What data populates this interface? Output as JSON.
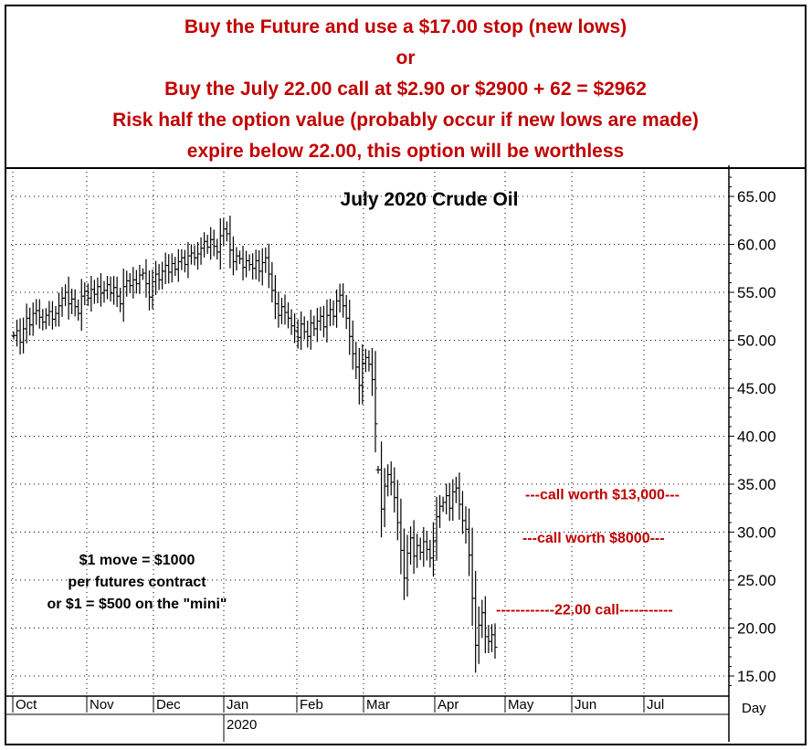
{
  "header": {
    "lines": [
      "Buy the Future and use a $17.00 stop (new lows)",
      "or",
      "Buy the July 22.00 call at $2.90 or $2900 + 62 = $2962",
      "Risk half the option value (probably occur if new lows are made)",
      "expire below 22.00, this option will be worthless"
    ]
  },
  "colors": {
    "annotation": "#c00000",
    "bars": "#000000",
    "grid": "#000000",
    "background": "#ffffff"
  },
  "chart_data": {
    "type": "ohlc",
    "title": "July 2020 Crude Oil",
    "ylim": [
      13,
      68
    ],
    "yticks": [
      "15.00",
      "20.00",
      "25.00",
      "30.00",
      "35.00",
      "40.00",
      "45.00",
      "50.00",
      "55.00",
      "60.00",
      "65.00"
    ],
    "x_months": [
      "Oct",
      "Nov",
      "Dec",
      "Jan",
      "Feb",
      "Mar",
      "Apr",
      "May",
      "Jun",
      "Jul"
    ],
    "x_year_label": "2020",
    "x_period_label": "Day",
    "grid": true,
    "notes": [
      "$1 move = $1000",
      "per futures contract",
      "or $1 = $500 on the \"mini\""
    ],
    "annotations": [
      {
        "text": "---call worth $13,000---",
        "y": 34
      },
      {
        "text": "---call worth $8000---",
        "y": 29.5
      },
      {
        "text": "------------22.00 call-----------",
        "y": 22
      }
    ],
    "closes_pre_gap": [
      50.5,
      51.0,
      49.8,
      51.2,
      52.3,
      51.6,
      52.8,
      53.1,
      52.4,
      51.9,
      52.6,
      53.0,
      52.2,
      52.8,
      53.6,
      54.4,
      55.0,
      53.8,
      54.3,
      53.5,
      52.8,
      54.6,
      55.1,
      54.4,
      55.3,
      54.8,
      55.6,
      54.9,
      55.2,
      55.8,
      54.9,
      55.5,
      54.6,
      53.8,
      55.6,
      56.2,
      55.7,
      56.3,
      55.9,
      56.8,
      57.0,
      55.9,
      54.5,
      56.1,
      56.9,
      56.3,
      57.2,
      57.8,
      57.1,
      58.0,
      57.4,
      58.2,
      58.6,
      57.9,
      58.8,
      59.1,
      58.6,
      59.0,
      59.6,
      60.3,
      59.7,
      60.5,
      59.8,
      59.2,
      60.9,
      61.6,
      61.1,
      59.4,
      58.2,
      58.8,
      58.5,
      57.6,
      58.3,
      57.9,
      57.5,
      58.3,
      57.2,
      58.1,
      58.6,
      56.9,
      55.2,
      53.8,
      52.6,
      53.5,
      52.9,
      52.3,
      51.5,
      51.0,
      50.3,
      51.7,
      50.9,
      50.4,
      51.8,
      51.2,
      52.0,
      52.5,
      51.4,
      52.6,
      53.2,
      52.5,
      54.1,
      54.7,
      53.6,
      52.3,
      50.4,
      48.6,
      47.2,
      45.3,
      47.6,
      48.2,
      47.5,
      45.9,
      41.3
    ],
    "closes_post_gap": [
      36.5,
      32.4,
      34.8,
      36.0,
      35.2,
      33.6,
      31.0,
      28.1,
      25.2,
      27.8,
      29.4,
      27.5,
      28.6,
      27.9,
      29.0,
      28.2,
      27.3,
      29.1,
      31.6,
      32.7,
      33.1,
      33.8,
      32.5,
      34.2,
      34.6,
      32.9,
      31.2,
      30.3,
      27.6,
      23.1,
      18.2,
      20.3,
      21.6,
      19.1,
      18.6,
      19.3,
      18.0
    ]
  }
}
